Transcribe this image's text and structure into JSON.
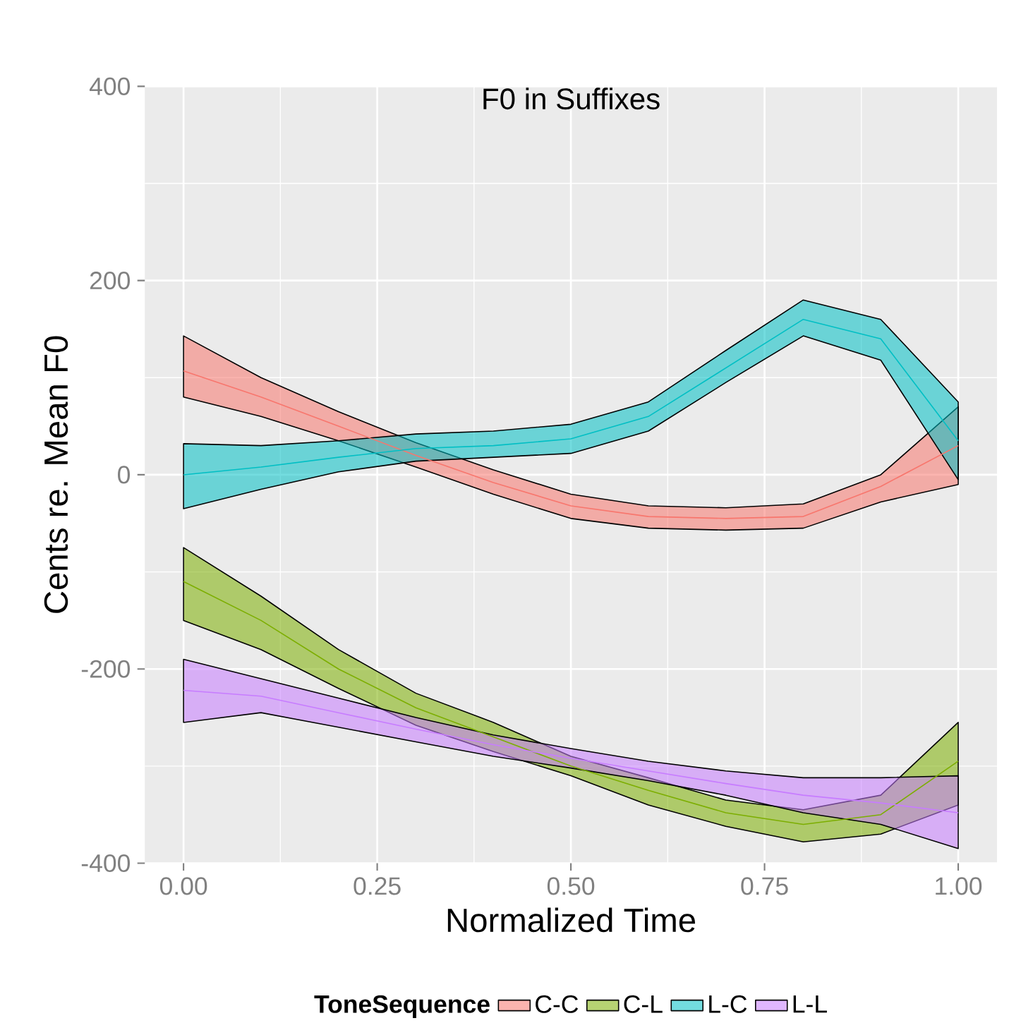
{
  "chart_data": {
    "type": "line",
    "title": "F0 in Suffixes",
    "xlabel": "Normalized Time",
    "ylabel": "Cents re. Mean F0",
    "legend_title": "ToneSequence",
    "x": [
      0,
      0.1,
      0.2,
      0.3,
      0.4,
      0.5,
      0.6,
      0.7,
      0.8,
      0.9,
      1.0
    ],
    "series": [
      {
        "name": "C-C",
        "color": "#F8766D",
        "values": [
          107,
          80,
          50,
          20,
          -8,
          -32,
          -43,
          -45,
          -43,
          -12,
          30
        ],
        "upper": [
          143,
          100,
          65,
          33,
          5,
          -20,
          -32,
          -34,
          -30,
          0,
          70
        ],
        "lower": [
          80,
          60,
          35,
          8,
          -20,
          -45,
          -55,
          -57,
          -55,
          -28,
          -10
        ]
      },
      {
        "name": "C-L",
        "color": "#7CAE00",
        "values": [
          -110,
          -150,
          -200,
          -240,
          -270,
          -300,
          -325,
          -348,
          -360,
          -350,
          -295
        ],
        "upper": [
          -75,
          -125,
          -180,
          -225,
          -255,
          -290,
          -312,
          -335,
          -345,
          -330,
          -255
        ],
        "lower": [
          -150,
          -180,
          -220,
          -258,
          -285,
          -310,
          -340,
          -362,
          -378,
          -370,
          -340
        ]
      },
      {
        "name": "L-C",
        "color": "#00BFC4",
        "values": [
          0,
          8,
          18,
          27,
          30,
          37,
          60,
          110,
          160,
          140,
          35
        ],
        "upper": [
          32,
          30,
          35,
          42,
          45,
          52,
          75,
          128,
          180,
          160,
          75
        ],
        "lower": [
          -35,
          -15,
          3,
          14,
          18,
          22,
          45,
          95,
          143,
          118,
          -5
        ]
      },
      {
        "name": "L-L",
        "color": "#C77CFF",
        "values": [
          -222,
          -228,
          -245,
          -262,
          -278,
          -292,
          -305,
          -318,
          -330,
          -338,
          -348
        ],
        "upper": [
          -190,
          -210,
          -230,
          -250,
          -268,
          -282,
          -295,
          -305,
          -312,
          -312,
          -310
        ],
        "lower": [
          -255,
          -245,
          -260,
          -275,
          -290,
          -302,
          -315,
          -330,
          -348,
          -360,
          -385
        ]
      }
    ],
    "xlim": [
      -0.05,
      1.05
    ],
    "ylim": [
      -400,
      400
    ],
    "xticks": [
      {
        "value": 0,
        "label": "0.00"
      },
      {
        "value": 0.25,
        "label": "0.25"
      },
      {
        "value": 0.5,
        "label": "0.50"
      },
      {
        "value": 0.75,
        "label": "0.75"
      },
      {
        "value": 1,
        "label": "1.00"
      }
    ],
    "yticks": [
      -400,
      -200,
      0,
      200,
      400
    ],
    "grid": true,
    "legend": "bottom",
    "marker": "none",
    "line_style": "solid"
  }
}
